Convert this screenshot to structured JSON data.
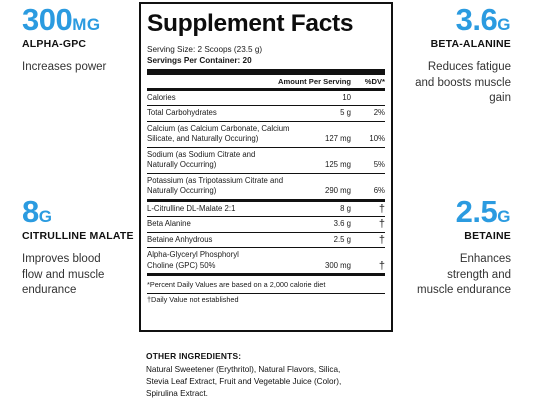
{
  "callouts": {
    "alpha_gpc": {
      "amount": "300",
      "unit": "MG",
      "name": "ALPHA-GPC",
      "description_lines": [
        "Increases power"
      ]
    },
    "beta_alanine": {
      "amount": "3.6",
      "unit": "G",
      "name": "BETA-ALANINE",
      "description_lines": [
        "Reduces fatigue",
        "and boosts muscle",
        "gain"
      ]
    },
    "citrulline": {
      "amount": "8",
      "unit": "G",
      "name": "CITRULLINE MALATE",
      "description_lines": [
        "Improves blood",
        "flow and muscle",
        "endurance"
      ]
    },
    "betaine": {
      "amount": "2.5",
      "unit": "G",
      "name": "BETAINE",
      "description_lines": [
        "Enhances",
        "strength and",
        "muscle endurance"
      ]
    }
  },
  "facts": {
    "title": "Supplement Facts",
    "serving_size": "Serving Size: 2 Scoops (23.5 g)",
    "servings_per_container": "Servings Per Container: 20",
    "header_amount": "Amount Per Serving",
    "header_dv": "%DV*",
    "rows": [
      {
        "name_lines": [
          "Calories"
        ],
        "amount": "10",
        "dv": ""
      },
      {
        "name_lines": [
          "Total Carbohydrates"
        ],
        "amount": "5 g",
        "dv": "2%"
      },
      {
        "name_lines": [
          "Calcium (as Calcium Carbonate, Calcium",
          "Silicate, and Naturally Occuring)"
        ],
        "amount": "127 mg",
        "dv": "10%"
      },
      {
        "name_lines": [
          "Sodium (as Sodium Citrate and",
          "Naturally Occurring)"
        ],
        "amount": "125 mg",
        "dv": "5%"
      },
      {
        "name_lines": [
          "Potassium (as Tripotassium Citrate and",
          "Naturally Occurring)"
        ],
        "amount": "290 mg",
        "dv": "6%"
      },
      {
        "name_lines": [
          "L-Citrulline DL-Malate 2:1"
        ],
        "amount": "8 g",
        "dv": "†"
      },
      {
        "name_lines": [
          "Beta Alanine"
        ],
        "amount": "3.6 g",
        "dv": "†"
      },
      {
        "name_lines": [
          "Betaine Anhydrous"
        ],
        "amount": "2.5 g",
        "dv": "†"
      },
      {
        "name_lines": [
          "Alpha-Glyceryl Phosphoryl",
          "Choline (GPC) 50%"
        ],
        "amount": "300 mg",
        "dv": "†"
      }
    ],
    "footnote_dv": "*Percent Daily Values are based on a 2,000 calorie diet",
    "footnote_dagger": "†Daily Value not established"
  },
  "other_ingredients": {
    "heading": "OTHER INGREDIENTS:",
    "lines": [
      "Natural Sweetener (Erythritol), Natural Flavors, Silica,",
      "Stevia Leaf Extract, Fruit and Vegetable Juice (Color),",
      "Spirulina Extract."
    ]
  }
}
